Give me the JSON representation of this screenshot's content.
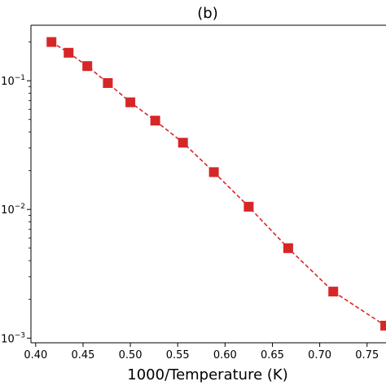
{
  "chart_data": {
    "type": "line",
    "title": "(b)",
    "xlabel": "1000/Temperature (K)",
    "ylabel": "",
    "yscale": "log",
    "xlim": [
      0.395,
      0.77
    ],
    "ylim": [
      0.00092,
      0.27
    ],
    "x_ticks": [
      "0.40",
      "0.45",
      "0.50",
      "0.55",
      "0.60",
      "0.65",
      "0.70",
      "0.75"
    ],
    "y_tick_labels": [
      {
        "value": 0.1,
        "mantissa": "10",
        "exponent": "−1"
      },
      {
        "value": 0.01,
        "mantissa": "10",
        "exponent": "−2"
      },
      {
        "value": 0.001,
        "mantissa": "10",
        "exponent": "−3"
      }
    ],
    "grid": false,
    "series": [
      {
        "color": "#d62728",
        "line_style": "dashed",
        "marker": "square",
        "x": [
          0.4167,
          0.4348,
          0.4545,
          0.4762,
          0.5,
          0.5263,
          0.5556,
          0.5882,
          0.625,
          0.6667,
          0.7143,
          0.7692
        ],
        "y": [
          0.2,
          0.165,
          0.13,
          0.096,
          0.068,
          0.049,
          0.033,
          0.0195,
          0.0105,
          0.005,
          0.0023,
          0.00125
        ]
      }
    ]
  }
}
